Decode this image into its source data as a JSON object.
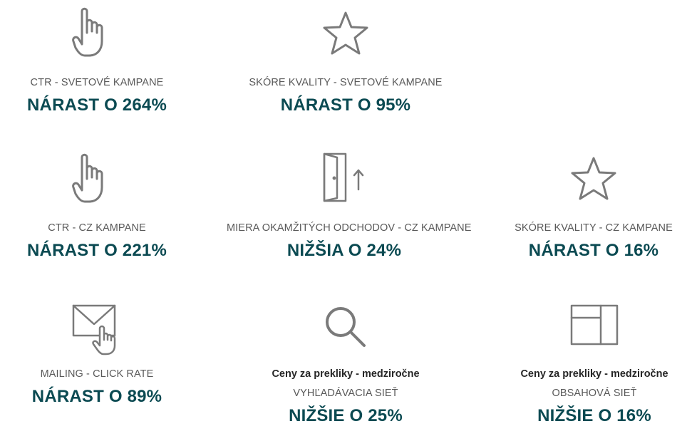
{
  "stats": [
    {
      "icon": "pointer-hand-icon",
      "label": "CTR - SVETOVÉ KAMPANE",
      "value": "NÁRAST O 264%"
    },
    {
      "icon": "star-icon",
      "label": "SKÓRE KVALITY - SVETOVÉ KAMPANE",
      "value": "NÁRAST O 95%"
    },
    {
      "icon": "pointer-hand-icon",
      "label": "CTR - CZ KAMPANE",
      "value": "NÁRAST O 221%"
    },
    {
      "icon": "door-exit-icon",
      "label": "MIERA OKAMŽITÝCH ODCHODOV - CZ KAMPANE",
      "value": "NIŽŠIA O 24%"
    },
    {
      "icon": "star-icon",
      "label": "SKÓRE KVALITY - CZ KAMPANE",
      "value": "NÁRAST O 16%"
    },
    {
      "icon": "mail-click-icon",
      "label": "MAILING - CLICK RATE",
      "value": "NÁRAST O 89%"
    },
    {
      "icon": "search-icon",
      "note": "Ceny za prekliky - medziročne",
      "label": "VYHĽADÁVACIA SIEŤ",
      "value": "NIŽŠIE O 25%"
    },
    {
      "icon": "layout-grid-icon",
      "note": "Ceny za prekliky - medziročne",
      "label": "OBSAHOVÁ SIEŤ",
      "value": "NIŽŠIE O 16%"
    }
  ]
}
